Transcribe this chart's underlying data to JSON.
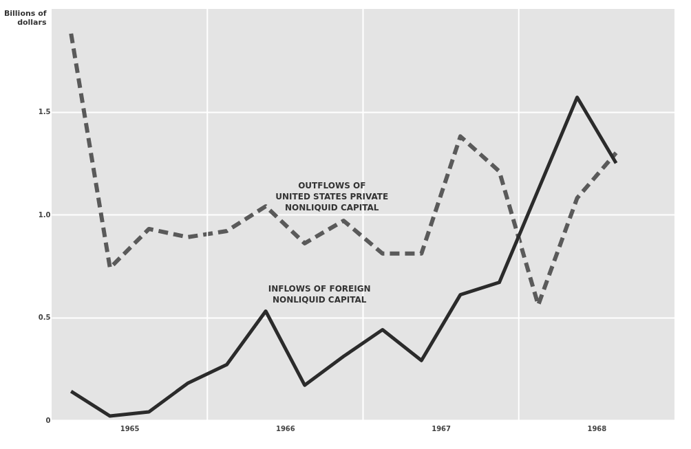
{
  "chart_data": {
    "type": "line",
    "ylabel": "Billions of\ndollars",
    "x": [
      1965.125,
      1965.375,
      1965.625,
      1965.875,
      1966.125,
      1966.375,
      1966.625,
      1966.875,
      1967.125,
      1967.375,
      1967.625,
      1967.875,
      1968.125,
      1968.375,
      1968.625
    ],
    "series": [
      {
        "name": "OUTFLOWS OF\nUNITED STATES PRIVATE\nNONLIQUID CAPITAL",
        "color": "#5a5a5a",
        "line_style": "dashed",
        "values": [
          1.88,
          0.74,
          0.93,
          0.89,
          0.92,
          1.04,
          0.86,
          0.97,
          0.81,
          0.81,
          1.38,
          1.21,
          0.56,
          1.08,
          1.3
        ]
      },
      {
        "name": "INFLOWS OF FOREIGN\nNONLIQUID CAPITAL",
        "color": "#2b2b2b",
        "line_style": "solid",
        "values": [
          0.14,
          0.02,
          0.04,
          0.18,
          0.27,
          0.53,
          0.17,
          0.31,
          0.44,
          0.29,
          0.61,
          0.67,
          1.12,
          1.57,
          1.25
        ]
      }
    ],
    "xlim": [
      1965,
      1969
    ],
    "xticks": [
      {
        "value": 1965.25,
        "label": null
      },
      {
        "value": 1965.5,
        "label": "1965"
      },
      {
        "value": 1965.75,
        "label": null
      },
      {
        "value": 1966.25,
        "label": null
      },
      {
        "value": 1966.5,
        "label": "1966"
      },
      {
        "value": 1966.75,
        "label": null
      },
      {
        "value": 1967.25,
        "label": null
      },
      {
        "value": 1967.5,
        "label": "1967"
      },
      {
        "value": 1967.75,
        "label": null
      },
      {
        "value": 1968.25,
        "label": null
      },
      {
        "value": 1968.5,
        "label": "1968"
      },
      {
        "value": 1968.75,
        "label": null
      }
    ],
    "ylim": [
      0,
      2.0
    ],
    "yticks": [
      0,
      0.5,
      {
        "value": 1.0,
        "label": "1.0"
      },
      1.5
    ],
    "grid": "y",
    "ref_lines": [
      {
        "axis": "x",
        "value": 1966,
        "color": "#ffffff"
      },
      {
        "axis": "x",
        "value": 1967,
        "color": "#ffffff"
      },
      {
        "axis": "x",
        "value": 1968,
        "color": "#ffffff"
      }
    ],
    "legend": false,
    "marker": "none"
  }
}
